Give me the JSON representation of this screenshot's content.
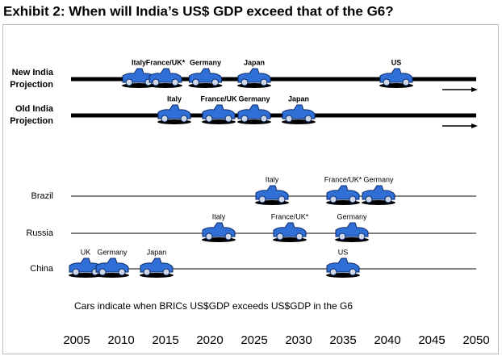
{
  "chart_data": {
    "type": "timeline",
    "title": "Exhibit 2: When will India’s US$ GDP exceed that of the G6?",
    "note": "Cars indicate when BRICs US$GDP exceeds US$GDP in the G6",
    "xlim": [
      2005,
      2050
    ],
    "xticks": [
      2005,
      2010,
      2015,
      2020,
      2025,
      2030,
      2035,
      2040,
      2045,
      2050
    ],
    "car_color": "#2f6fd6",
    "rows": [
      {
        "name": "New India Projection",
        "thick": true,
        "arrow": true,
        "events": [
          {
            "label": "Italy",
            "year": 2012
          },
          {
            "label": "France/UK*",
            "year": 2015
          },
          {
            "label": "Germany",
            "year": 2019.5
          },
          {
            "label": "Japan",
            "year": 2025
          },
          {
            "label": "US",
            "year": 2041
          }
        ]
      },
      {
        "name": "Old India Projection",
        "thick": true,
        "arrow": true,
        "events": [
          {
            "label": "Italy",
            "year": 2016
          },
          {
            "label": "France/UK",
            "year": 2021
          },
          {
            "label": "Germany",
            "year": 2025
          },
          {
            "label": "Japan",
            "year": 2030
          }
        ]
      },
      {
        "name": "Brazil",
        "thick": false,
        "arrow": false,
        "events": [
          {
            "label": "Italy",
            "year": 2027
          },
          {
            "label": "France/UK*",
            "year": 2035
          },
          {
            "label": "Germany",
            "year": 2039
          }
        ]
      },
      {
        "name": "Russia",
        "thick": false,
        "arrow": false,
        "events": [
          {
            "label": "Italy",
            "year": 2021
          },
          {
            "label": "France/UK*",
            "year": 2029
          },
          {
            "label": "Germany",
            "year": 2036
          }
        ]
      },
      {
        "name": "China",
        "thick": false,
        "arrow": false,
        "events": [
          {
            "label": "UK",
            "year": 2006
          },
          {
            "label": "Germany",
            "year": 2009
          },
          {
            "label": "Japan",
            "year": 2014
          },
          {
            "label": "US",
            "year": 2035
          }
        ]
      }
    ]
  }
}
